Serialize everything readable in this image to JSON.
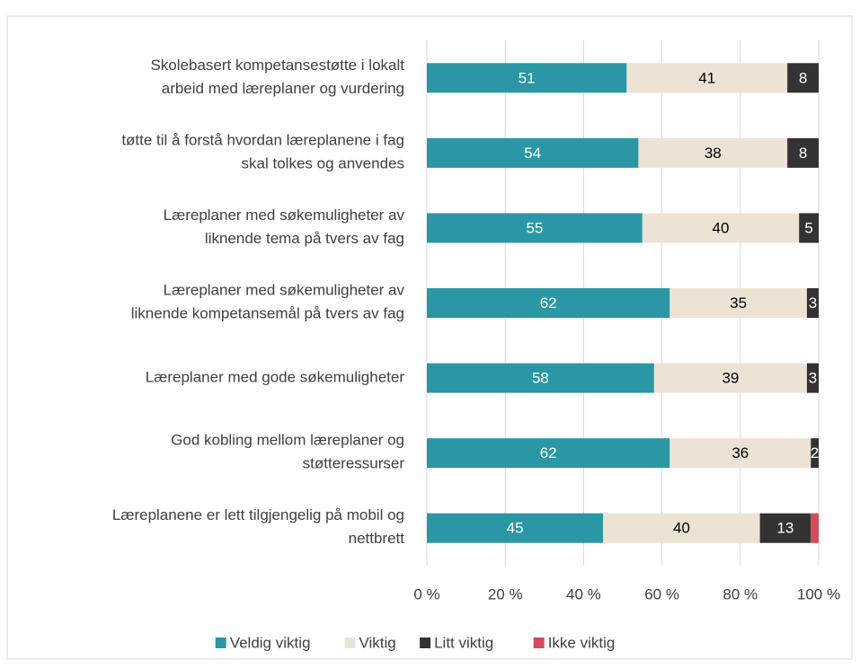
{
  "chart_data": {
    "type": "stacked_barh",
    "categories": [
      "Skolebasert kompetansestøtte i lokalt\narbeid med læreplaner og vurdering",
      "tøtte til å forstå hvordan læreplanene i fag\nskal tolkes og anvendes",
      "Læreplaner med søkemuligheter av\nliknende tema på tvers av fag",
      "Læreplaner med søkemuligheter av\nliknende kompetansemål på tvers av fag",
      "Læreplaner med gode søkemuligheter",
      "God kobling mellom læreplaner og\nstøtteressurser",
      "Læreplanene er lett tilgjengelig på mobil og\nnettbrett"
    ],
    "series": [
      {
        "name": "Veldig viktig",
        "color": "#2b97a5",
        "label_color": "#ffffff",
        "values": [
          51,
          54,
          55,
          62,
          58,
          62,
          45
        ]
      },
      {
        "name": "Viktig",
        "color": "#ede3d5",
        "label_color": "#000000",
        "values": [
          41,
          38,
          40,
          35,
          39,
          36,
          40
        ]
      },
      {
        "name": "Litt viktig",
        "color": "#333333",
        "label_color": "#ffffff",
        "values": [
          8,
          8,
          5,
          3,
          3,
          2,
          13
        ]
      },
      {
        "name": "Ikke viktig",
        "color": "#d64a5e",
        "data_labels": false,
        "values": [
          0,
          0,
          0,
          0,
          0,
          0,
          2
        ]
      }
    ],
    "xlim": [
      0,
      100
    ],
    "xticks": [
      {
        "value": 0,
        "label": "0 %"
      },
      {
        "value": 20,
        "label": "20 %"
      },
      {
        "value": 40,
        "label": "40 %"
      },
      {
        "value": 60,
        "label": "60 %"
      },
      {
        "value": 80,
        "label": "80 %"
      },
      {
        "value": 100,
        "label": "100 %"
      }
    ],
    "grid": true,
    "legend": "bottom"
  }
}
